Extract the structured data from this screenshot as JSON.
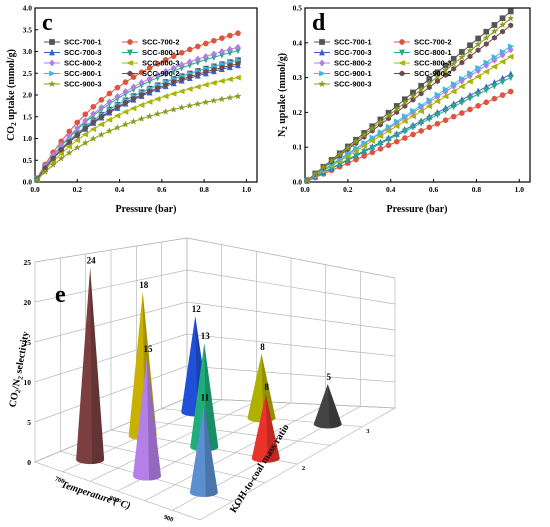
{
  "chart_data": [
    {
      "panel": "c",
      "type": "line",
      "xlabel": "Pressure (bar)",
      "ylabel": "CO2 uptake (mmol/g)",
      "ylabel_main": "CO",
      "ylabel_sub": "2",
      "ylabel_rest": " uptake (mmol/g)",
      "xlim": [
        0.0,
        1.05
      ],
      "ylim": [
        0.0,
        4.0
      ],
      "xticks": [
        "0.0",
        "0.2",
        "0.4",
        "0.6",
        "0.8",
        "1.0"
      ],
      "yticks": [
        "0.0",
        "0.5",
        "1.0",
        "1.5",
        "2.0",
        "2.5",
        "3.0",
        "3.5",
        "4.0"
      ],
      "legend_position": "top-left",
      "series": [
        {
          "name": "SCC-700-1",
          "color": "#555555",
          "marker": "square",
          "final": 2.8
        },
        {
          "name": "SCC-700-2",
          "color": "#e0533c",
          "marker": "circle",
          "final": 3.42
        },
        {
          "name": "SCC-700-3",
          "color": "#3a5fcd",
          "marker": "triangle-up",
          "final": 2.68
        },
        {
          "name": "SCC-800-1",
          "color": "#2aa58a",
          "marker": "triangle-down",
          "final": 3.02
        },
        {
          "name": "SCC-800-2",
          "color": "#b07ee0",
          "marker": "diamond",
          "final": 3.1
        },
        {
          "name": "SCC-800-3",
          "color": "#a8b400",
          "marker": "triangle-left",
          "final": 2.4
        },
        {
          "name": "SCC-900-1",
          "color": "#3fb8e0",
          "marker": "triangle-right",
          "final": 2.8
        },
        {
          "name": "SCC-900-2",
          "color": "#6e4a4a",
          "marker": "hexagon",
          "final": 2.72
        },
        {
          "name": "SCC-900-3",
          "color": "#8a9a1a",
          "marker": "star",
          "final": 1.97
        }
      ]
    },
    {
      "panel": "d",
      "type": "line",
      "xlabel": "Pressure (bar)",
      "ylabel": "N2 uptake (mmol/g)",
      "ylabel_main": "N",
      "ylabel_sub": "2",
      "ylabel_rest": " uptake (mmol/g)",
      "xlim": [
        0.0,
        1.05
      ],
      "ylim": [
        0.0,
        0.5
      ],
      "xticks": [
        "0.0",
        "0.2",
        "0.4",
        "0.6",
        "0.8",
        "1.0"
      ],
      "yticks": [
        "0.0",
        "0.1",
        "0.2",
        "0.3",
        "0.4",
        "0.5"
      ],
      "legend_position": "top-left",
      "series": [
        {
          "name": "SCC-700-1",
          "color": "#555555",
          "marker": "square",
          "final": 0.49
        },
        {
          "name": "SCC-700-2",
          "color": "#e0533c",
          "marker": "circle",
          "final": 0.26
        },
        {
          "name": "SCC-700-3",
          "color": "#3a5fcd",
          "marker": "triangle-up",
          "final": 0.31
        },
        {
          "name": "SCC-800-1",
          "color": "#2aa58a",
          "marker": "triangle-down",
          "final": 0.3
        },
        {
          "name": "SCC-800-2",
          "color": "#b07ee0",
          "marker": "diamond",
          "final": 0.38
        },
        {
          "name": "SCC-800-3",
          "color": "#a8b400",
          "marker": "triangle-left",
          "final": 0.36
        },
        {
          "name": "SCC-900-1",
          "color": "#3fb8e0",
          "marker": "triangle-right",
          "final": 0.39
        },
        {
          "name": "SCC-900-2",
          "color": "#6e4a4a",
          "marker": "hexagon",
          "final": 0.45
        },
        {
          "name": "SCC-900-3",
          "color": "#8a9a1a",
          "marker": "star",
          "final": 0.47
        }
      ]
    },
    {
      "panel": "e",
      "type": "bar3d",
      "zlabel_main": "CO",
      "zlabel_sub1": "2",
      "zlabel_mid": "/N",
      "zlabel_sub2": "2",
      "zlabel_rest": " selectivity",
      "xlabel": "Temperature (°C)",
      "ylabel": "KOH-to-coal mass ratio",
      "zlim": [
        0,
        25
      ],
      "zticks": [
        "0",
        "5",
        "10",
        "15",
        "20",
        "25"
      ],
      "temperature_ticks": [
        "700",
        "800",
        "900"
      ],
      "ratio_ticks": [
        "1",
        "2",
        "3"
      ],
      "cones": [
        {
          "temp": "700",
          "ratio": "1",
          "value": 24,
          "label": "24",
          "color": "#7b3f3f"
        },
        {
          "temp": "700",
          "ratio": "2",
          "value": 18,
          "label": "18",
          "color": "#c9b100"
        },
        {
          "temp": "700",
          "ratio": "3",
          "value": 12,
          "label": "12",
          "color": "#2050d8"
        },
        {
          "temp": "800",
          "ratio": "1",
          "value": 15,
          "label": "15",
          "color": "#b57fe8"
        },
        {
          "temp": "800",
          "ratio": "2",
          "value": 13,
          "label": "13",
          "color": "#1fae7a"
        },
        {
          "temp": "800",
          "ratio": "3",
          "value": 8,
          "label": "8",
          "color": "#b0b000"
        },
        {
          "temp": "900",
          "ratio": "1",
          "value": 11,
          "label": "11",
          "color": "#5a8fd0"
        },
        {
          "temp": "900",
          "ratio": "2",
          "value": 8,
          "label": "8",
          "color": "#e8322a"
        },
        {
          "temp": "900",
          "ratio": "3",
          "value": 5,
          "label": "5",
          "color": "#444444"
        }
      ]
    }
  ]
}
